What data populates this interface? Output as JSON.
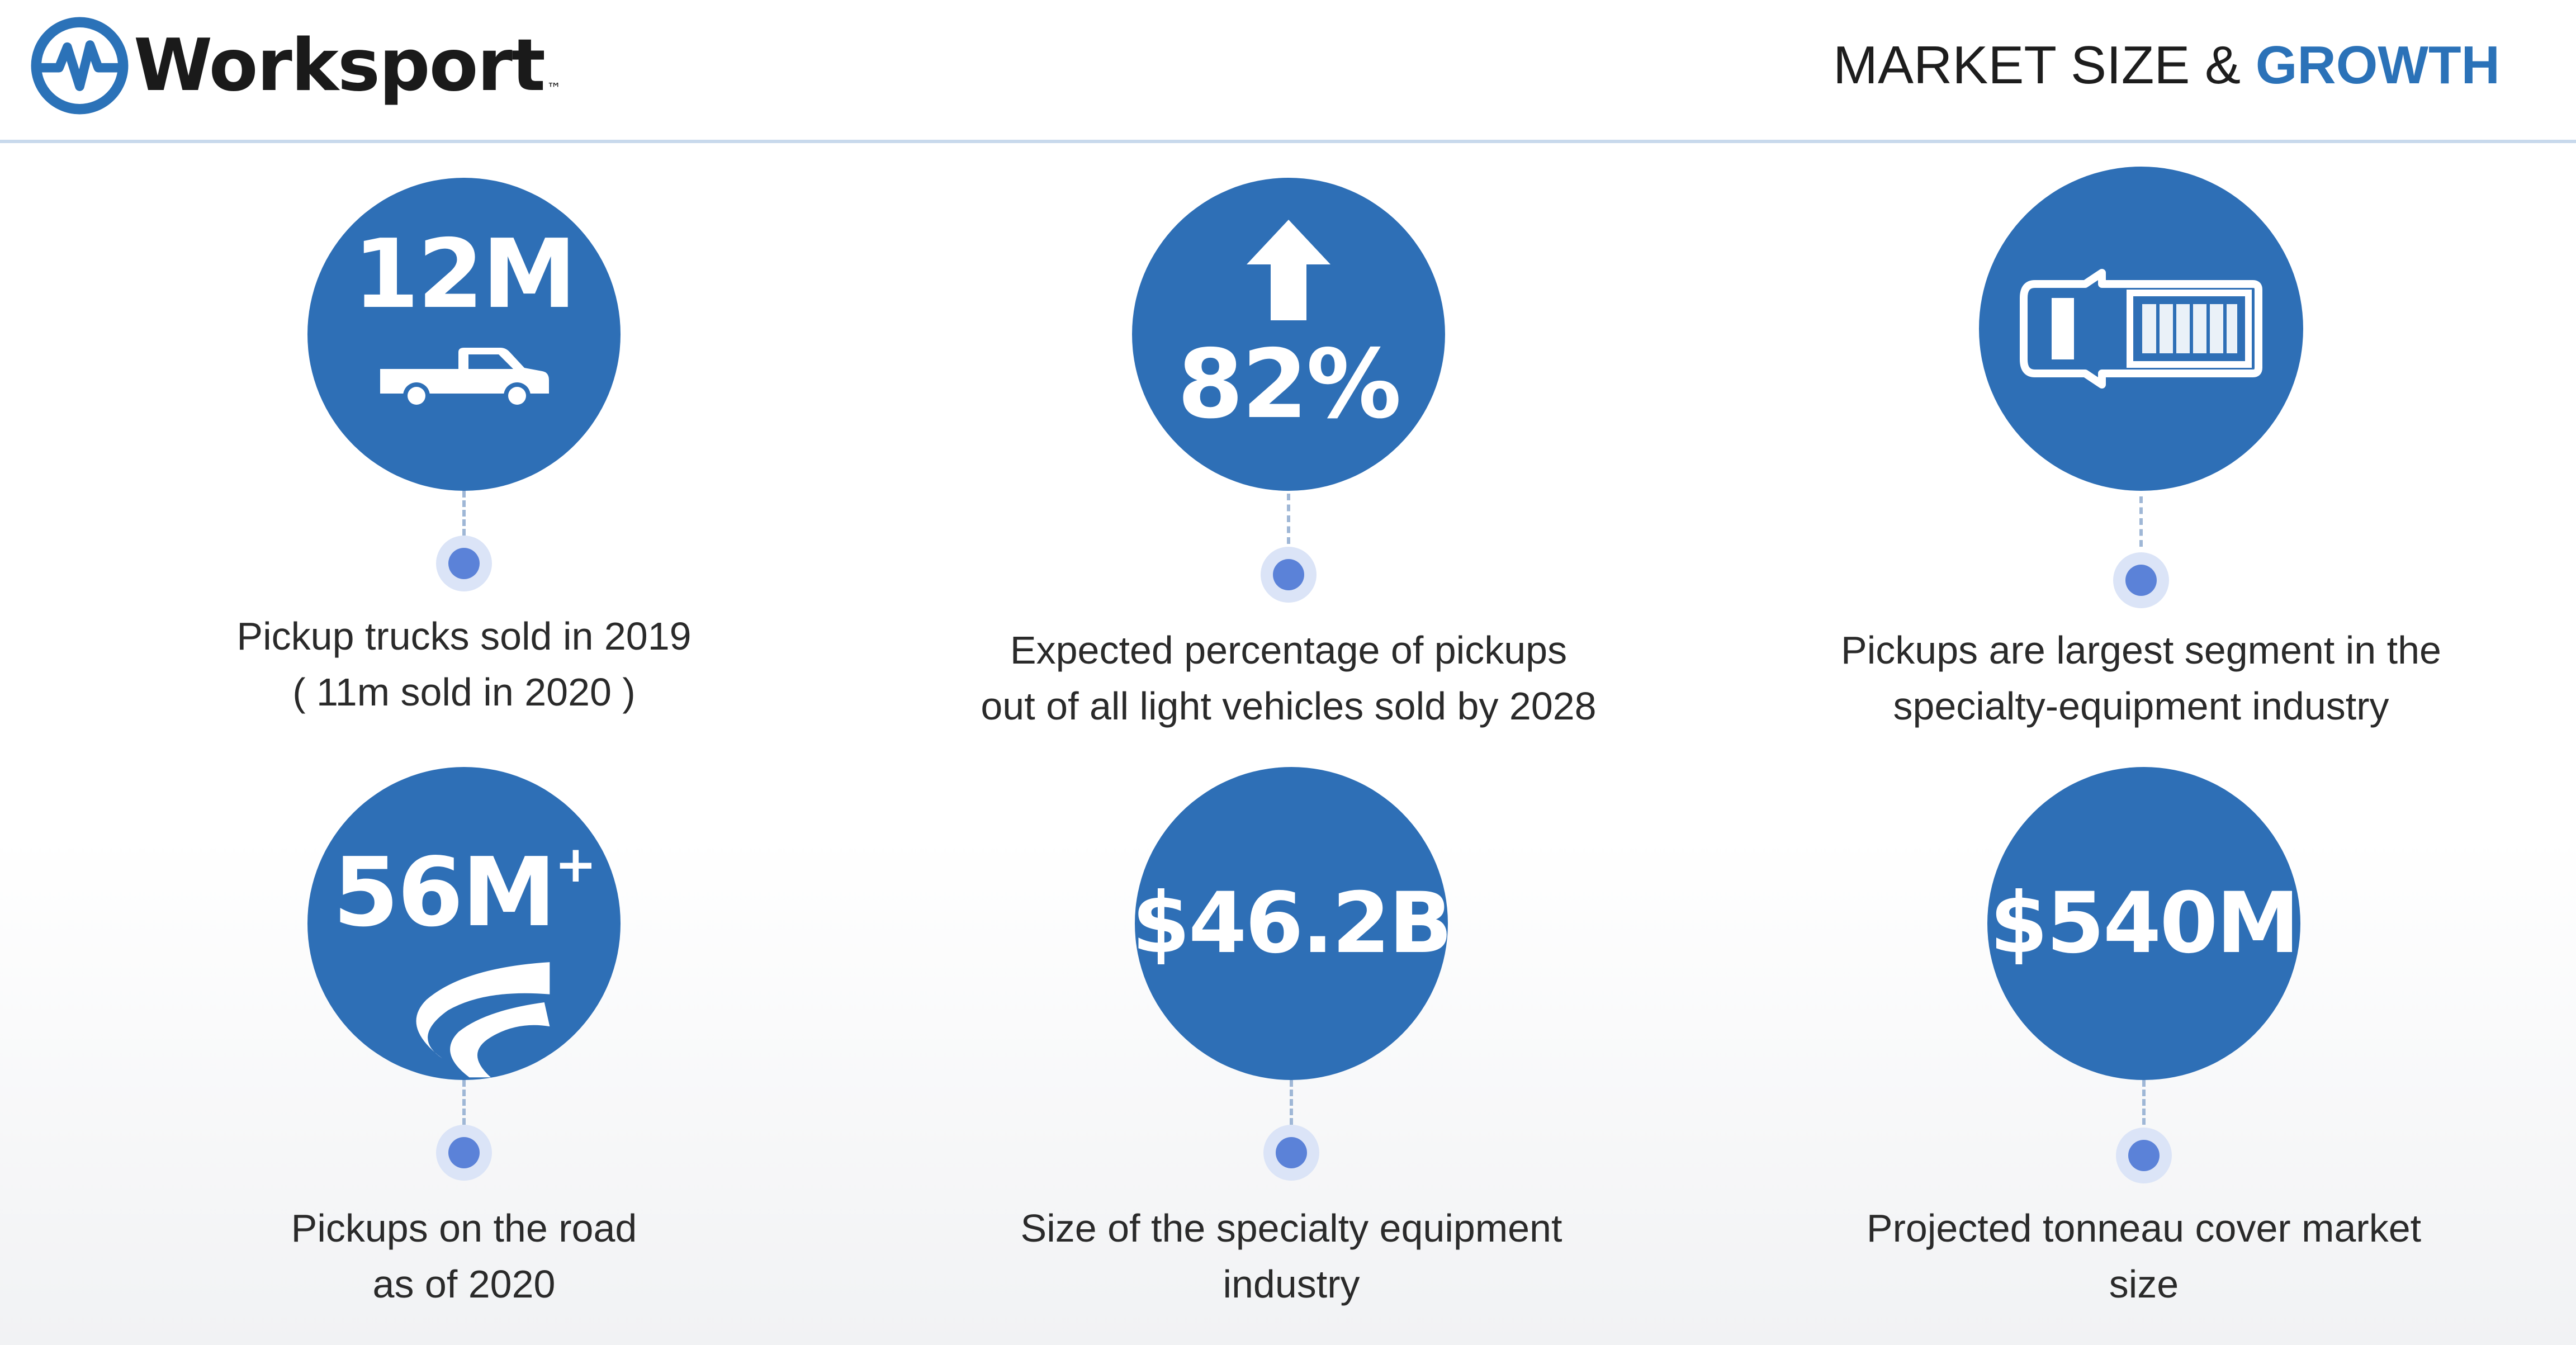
{
  "header": {
    "brand": "Worksport",
    "brand_tm": "™",
    "title_part1": "MARKET SIZE & ",
    "title_part2": "GROWTH"
  },
  "colors": {
    "accent": "#2e6fb6",
    "heading_accent": "#2b72b8",
    "dot": "#5b82d8"
  },
  "stats": [
    {
      "value": "12M",
      "icon": "pickup-truck-icon",
      "caption_line1": "Pickup trucks sold in 2019",
      "caption_line2": "( 11m sold in 2020 )"
    },
    {
      "value": "82%",
      "icon": "arrow-up-icon",
      "caption_line1": "Expected percentage of pickups",
      "caption_line2": "out of all light vehicles sold by 2028"
    },
    {
      "value": "",
      "icon": "truck-top-view-icon",
      "caption_line1": "Pickups are largest segment in the",
      "caption_line2": "specialty-equipment industry"
    },
    {
      "value": "56M",
      "value_sup": "+",
      "icon": "road-icon",
      "caption_line1": "Pickups on the road",
      "caption_line2": "as of 2020"
    },
    {
      "value": "$46.2B",
      "icon": "",
      "caption_line1": "Size of the specialty equipment",
      "caption_line2": "industry"
    },
    {
      "value": "$540M",
      "icon": "",
      "caption_line1": "Projected tonneau cover market",
      "caption_line2": "size"
    }
  ]
}
